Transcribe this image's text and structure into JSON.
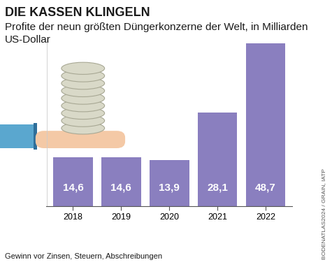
{
  "chart_data": {
    "type": "bar",
    "title": "DIE KASSEN KLINGELN",
    "subtitle": "Profite der neun größten Düngerkonzerne der Welt, in Milliarden US-Dollar",
    "categories": [
      "2018",
      "2019",
      "2020",
      "2021",
      "2022"
    ],
    "values": [
      14.6,
      14.6,
      13.9,
      28.1,
      48.7
    ],
    "value_labels": [
      "14,6",
      "14,6",
      "13,9",
      "28,1",
      "48,7"
    ],
    "color": "#8a7fbf",
    "ylim": [
      0,
      50
    ],
    "yticks": [],
    "data_labels": true,
    "tick_labels": "x",
    "grid": false,
    "footnote": "Gewinn vor Zinsen, Steuern, Abschreibungen",
    "source": "BODENATLAS2024 / GRAIN, IATP"
  }
}
